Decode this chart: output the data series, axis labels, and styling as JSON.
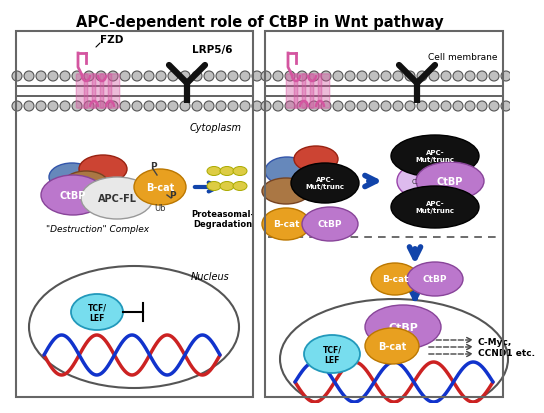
{
  "title": "APC-dependent role of CtBP in Wnt pathway",
  "title_fontsize": 10.5,
  "bg_color": "#ffffff",
  "membrane_color": "#555555",
  "membrane_circle_fill": "#c0c0c0",
  "fzd_color": "#d455a0",
  "lrp_color": "#111111",
  "ctbp_color": "#bb77cc",
  "ctbp_edge": "#884499",
  "apcfl_color": "#e8e8e8",
  "apcfl_edge": "#999999",
  "bcat_color": "#e8a020",
  "bcat_edge": "#bb7700",
  "apcmut_color": "#111111",
  "blue_oval": "#6688bb",
  "blue_oval_edge": "#3355aa",
  "red_oval": "#cc4433",
  "red_oval_edge": "#992211",
  "brown_oval": "#aa7744",
  "brown_oval_edge": "#774422",
  "tcflef_color": "#77ddee",
  "tcflef_edge": "#2299bb",
  "dna_red": "#cc2222",
  "dna_blue": "#1133cc",
  "arrow_blue": "#1144aa",
  "panel_edge": "#666666",
  "yellow_oval": "#ddcc44",
  "yellow_oval_edge": "#aaaa00",
  "small_c_color": "#ddbbee",
  "small_c_edge": "#9944aa",
  "label_cytoplasm": "Cytoplasm",
  "label_nucleus": "Nucleus",
  "label_cell_membrane": "Cell membrane",
  "label_destruction": "\"Destruction\" Complex",
  "label_proteasomal": "Proteasomal-\nDegradation",
  "label_cmyc": "C-Myc,\nCCND1 etc.",
  "label_fzd": "FZD",
  "label_lrp": "LRP5/6",
  "label_apc_fl": "APC-FL",
  "label_bcat": "B-cat",
  "label_ctbp": "CtBP",
  "label_apc_mut": "APC-\nMut/trunc",
  "label_ub": "Ub",
  "label_p": "P",
  "label_tcf": "TCF/\nLEF"
}
